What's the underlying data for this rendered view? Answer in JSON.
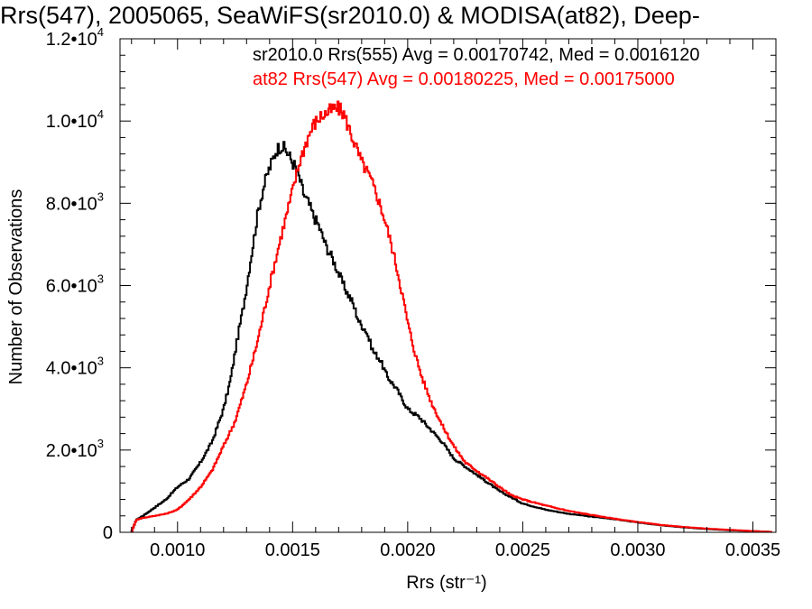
{
  "chart_data": {
    "type": "line",
    "title": "Rrs(547), 2005065, SeaWiFS(sr2010.0) & MODISA(at82), Deep-",
    "xlabel": "Rrs (str⁻¹)",
    "ylabel": "Number of Observations",
    "xlim": [
      0.00075,
      0.0036
    ],
    "ylim": [
      0,
      12000
    ],
    "x_ticks": [
      0.001,
      0.0015,
      0.002,
      0.0025,
      0.003,
      0.0035
    ],
    "x_tick_labels": [
      "0.0010",
      "0.0015",
      "0.0020",
      "0.0025",
      "0.0030",
      "0.0035"
    ],
    "y_ticks": [
      0,
      2000,
      4000,
      6000,
      8000,
      10000,
      12000
    ],
    "y_tick_labels": [
      {
        "mantissa": "0",
        "exp": ""
      },
      {
        "mantissa": "2.0•10",
        "exp": "3"
      },
      {
        "mantissa": "4.0•10",
        "exp": "3"
      },
      {
        "mantissa": "6.0•10",
        "exp": "3"
      },
      {
        "mantissa": "8.0•10",
        "exp": "3"
      },
      {
        "mantissa": "1.0•10",
        "exp": "4"
      },
      {
        "mantissa": "1.2•10",
        "exp": "4"
      }
    ],
    "grid": false,
    "legend_position": "top-right",
    "step": true,
    "series": [
      {
        "name": "sr2010.0 Rrs(555) Avg = 0.00170742, Med = 0.0016120",
        "color": "#000000",
        "x": [
          0.0008,
          0.00082,
          0.00085,
          0.0009,
          0.00095,
          0.001,
          0.00105,
          0.0011,
          0.00115,
          0.0012,
          0.00123,
          0.00126,
          0.00129,
          0.00132,
          0.00135,
          0.00137,
          0.00139,
          0.00141,
          0.00143,
          0.00145,
          0.00147,
          0.00149,
          0.00151,
          0.00153,
          0.00155,
          0.00157,
          0.00159,
          0.00161,
          0.00163,
          0.00165,
          0.00167,
          0.0017,
          0.00173,
          0.00176,
          0.00179,
          0.00182,
          0.00185,
          0.00188,
          0.00191,
          0.00195,
          0.002,
          0.00205,
          0.0021,
          0.00215,
          0.0022,
          0.00225,
          0.0023,
          0.00235,
          0.0024,
          0.00245,
          0.0025,
          0.0026,
          0.0027,
          0.0028,
          0.0029,
          0.003,
          0.0031,
          0.0032,
          0.0033,
          0.0034,
          0.0035,
          0.00358
        ],
        "y": [
          0,
          300,
          400,
          600,
          800,
          1100,
          1300,
          1700,
          2200,
          3000,
          3700,
          4700,
          5600,
          6700,
          7800,
          8300,
          8700,
          9000,
          9300,
          9400,
          9300,
          9100,
          8900,
          8600,
          8200,
          8000,
          7700,
          7500,
          7200,
          6900,
          6700,
          6300,
          5900,
          5600,
          5100,
          4900,
          4400,
          4200,
          3800,
          3500,
          3000,
          2800,
          2500,
          2200,
          1800,
          1600,
          1400,
          1200,
          1000,
          850,
          700,
          550,
          450,
          380,
          320,
          240,
          170,
          120,
          80,
          50,
          30,
          10
        ]
      },
      {
        "name": "at82 Rrs(547) Avg = 0.00180225, Med = 0.00175000",
        "color": "#ff0000",
        "x": [
          0.0008,
          0.00082,
          0.00085,
          0.0009,
          0.00095,
          0.001,
          0.00105,
          0.0011,
          0.00115,
          0.0012,
          0.00125,
          0.0013,
          0.00135,
          0.0014,
          0.00145,
          0.0015,
          0.00153,
          0.00156,
          0.00159,
          0.00162,
          0.00165,
          0.00168,
          0.0017,
          0.00172,
          0.00174,
          0.00176,
          0.00178,
          0.0018,
          0.00183,
          0.00186,
          0.00189,
          0.00192,
          0.00195,
          0.00198,
          0.002,
          0.00203,
          0.00206,
          0.0021,
          0.00215,
          0.0022,
          0.00225,
          0.0023,
          0.00235,
          0.0024,
          0.00245,
          0.0025,
          0.0026,
          0.0027,
          0.0028,
          0.0029,
          0.003,
          0.0031,
          0.0032,
          0.0033,
          0.0034,
          0.0035,
          0.00358
        ],
        "y": [
          0,
          300,
          350,
          400,
          450,
          550,
          800,
          1100,
          1500,
          2100,
          2700,
          3600,
          4700,
          6000,
          7200,
          8300,
          9000,
          9500,
          9900,
          10100,
          10200,
          10300,
          10300,
          10200,
          9900,
          9600,
          9300,
          9000,
          8700,
          8300,
          7800,
          7200,
          6500,
          5700,
          5100,
          4400,
          3800,
          3200,
          2600,
          2100,
          1700,
          1500,
          1300,
          1100,
          900,
          800,
          650,
          520,
          420,
          330,
          250,
          180,
          130,
          90,
          60,
          30,
          10
        ]
      }
    ]
  }
}
